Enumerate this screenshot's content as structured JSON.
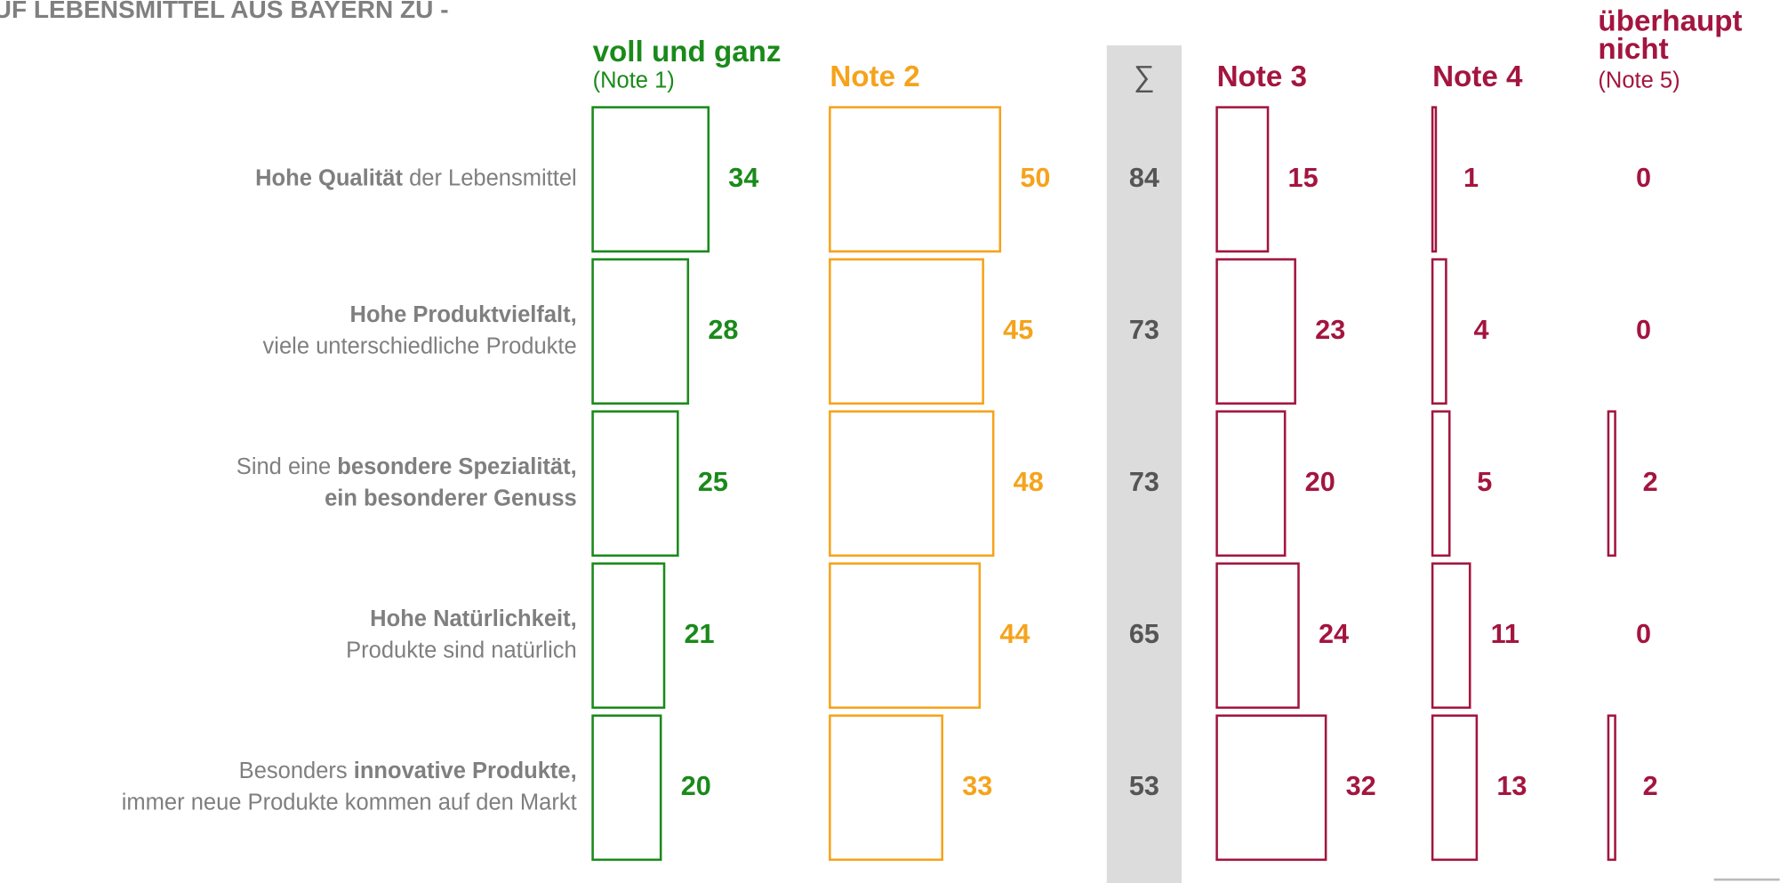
{
  "chart_data": {
    "type": "bar",
    "title": "UF LEBENSMITTEL AUS BAYERN ZU -",
    "categories": [
      [
        [
          {
            "t": "Hohe Qualität",
            "b": true
          },
          {
            "t": " der Lebensmittel"
          }
        ]
      ],
      [
        [
          {
            "t": "Hohe Produktvielfalt,",
            "b": true
          }
        ],
        [
          {
            "t": "viele unterschiedliche Produkte"
          }
        ]
      ],
      [
        [
          {
            "t": "Sind eine "
          },
          {
            "t": "besondere Spezialität,",
            "b": true
          }
        ],
        [
          {
            "t": "ein besonderer Genuss",
            "b": true
          }
        ]
      ],
      [
        [
          {
            "t": "Hohe Natürlichkeit,",
            "b": true
          }
        ],
        [
          {
            "t": "Produkte sind natürlich"
          }
        ]
      ],
      [
        [
          {
            "t": "Besonders "
          },
          {
            "t": "innovative Produkte,",
            "b": true
          }
        ],
        [
          {
            "t": "immer neue Produkte kommen auf den Markt"
          }
        ]
      ]
    ],
    "series": [
      {
        "name": [
          "voll und ganz"
        ],
        "note": "(Note 1)",
        "color": "#1a8a1a",
        "values": [
          34,
          28,
          25,
          21,
          20
        ]
      },
      {
        "name": [
          "Note 2"
        ],
        "color": "#f5a31c",
        "values": [
          50,
          45,
          48,
          44,
          33
        ]
      },
      {
        "name": [
          "Note 3"
        ],
        "color": "#a3153f",
        "values": [
          15,
          23,
          20,
          24,
          32
        ]
      },
      {
        "name": [
          "Note 4"
        ],
        "color": "#a3153f",
        "values": [
          1,
          4,
          5,
          11,
          13
        ]
      },
      {
        "name": [
          "überhaupt",
          "nicht"
        ],
        "note": "(Note 5)",
        "color": "#a3153f",
        "values": [
          0,
          0,
          2,
          0,
          2
        ]
      }
    ],
    "totals": {
      "name": "∑",
      "values": [
        84,
        73,
        73,
        65,
        53
      ]
    }
  }
}
